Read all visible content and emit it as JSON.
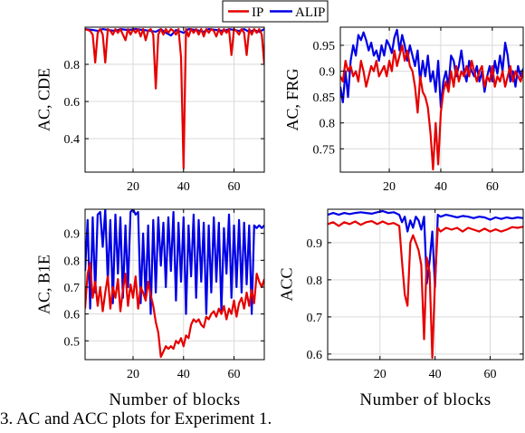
{
  "caption": "3.  AC and ACC plots for Experiment 1.",
  "colors": {
    "IP": "#e60000",
    "ALIP": "#0000e6",
    "grid": "#d9d9d9",
    "axis": "#000000"
  },
  "chart_data": [
    {
      "type": "line",
      "legend": {
        "placement": "top-center",
        "entries": [
          "IP",
          "ALIP"
        ]
      },
      "ylabel": "AC, CDE",
      "xlabel": "",
      "xlim": [
        1,
        72
      ],
      "ylim": [
        0.22,
        1.0
      ],
      "xticks": [
        20,
        40,
        60
      ],
      "yticks": [
        0.4,
        0.6,
        0.8
      ],
      "ytick_labels": [
        "0.4",
        "0.6",
        "0.8"
      ],
      "grid": true,
      "series": [
        {
          "name": "ALIP",
          "color": "#0000e6",
          "x": [
            1,
            4,
            6,
            8,
            10,
            13,
            15,
            18,
            21,
            24,
            27,
            29,
            31,
            33,
            35,
            37,
            39,
            40,
            42,
            45,
            48,
            50,
            53,
            56,
            58,
            60,
            62,
            64,
            66,
            68,
            70,
            72
          ],
          "y": [
            0.99,
            0.985,
            0.98,
            0.99,
            0.985,
            0.98,
            0.99,
            0.985,
            0.99,
            0.985,
            0.98,
            0.975,
            0.99,
            0.97,
            0.955,
            0.985,
            0.975,
            0.97,
            0.99,
            0.985,
            0.975,
            0.99,
            0.985,
            0.98,
            0.99,
            0.985,
            0.98,
            0.99,
            0.975,
            0.985,
            0.975,
            0.99
          ]
        },
        {
          "name": "IP",
          "color": "#e60000",
          "x": [
            1,
            3,
            4,
            5,
            6,
            7,
            8,
            9,
            10,
            11,
            12,
            13,
            14,
            15,
            16,
            17,
            18,
            19,
            20,
            21,
            22,
            23,
            24,
            25,
            26,
            27,
            28,
            29,
            30,
            31,
            32,
            33,
            34,
            35,
            36,
            37,
            38,
            39,
            40,
            41,
            42,
            43,
            44,
            45,
            46,
            47,
            48,
            49,
            50,
            51,
            52,
            53,
            54,
            55,
            56,
            57,
            58,
            59,
            60,
            61,
            62,
            63,
            64,
            65,
            66,
            67,
            68,
            69,
            70,
            71,
            72
          ],
          "y": [
            0.99,
            0.98,
            0.96,
            0.81,
            0.97,
            0.99,
            0.96,
            0.81,
            0.99,
            0.98,
            0.96,
            0.99,
            0.97,
            0.99,
            0.96,
            0.93,
            0.99,
            0.96,
            0.99,
            0.97,
            0.99,
            0.95,
            0.99,
            0.93,
            0.98,
            0.99,
            0.96,
            0.67,
            0.96,
            0.99,
            0.96,
            0.99,
            0.97,
            0.99,
            0.98,
            0.96,
            0.99,
            0.84,
            0.24,
            0.99,
            0.95,
            0.99,
            0.97,
            0.99,
            0.96,
            0.99,
            0.95,
            0.99,
            0.97,
            0.99,
            0.98,
            0.95,
            0.99,
            0.96,
            0.99,
            0.97,
            0.99,
            0.85,
            0.99,
            0.98,
            0.96,
            0.99,
            0.97,
            0.85,
            0.99,
            0.96,
            0.99,
            0.97,
            0.99,
            0.96,
            0.8
          ]
        }
      ]
    },
    {
      "type": "line",
      "ylabel": "AC, FRG",
      "xlabel": "",
      "xlim": [
        1,
        72
      ],
      "ylim": [
        0.705,
        0.985
      ],
      "xticks": [
        20,
        40,
        60
      ],
      "yticks": [
        0.75,
        0.8,
        0.85,
        0.9,
        0.95
      ],
      "ytick_labels": [
        "0.75",
        "0.8",
        "0.85",
        "0.9",
        "0.95"
      ],
      "grid": true,
      "series": [
        {
          "name": "ALIP",
          "color": "#0000e6",
          "x": [
            1,
            2,
            3,
            4,
            5,
            6,
            7,
            8,
            9,
            10,
            11,
            12,
            13,
            14,
            15,
            16,
            17,
            18,
            19,
            20,
            21,
            22,
            23,
            24,
            25,
            26,
            27,
            28,
            29,
            30,
            31,
            32,
            33,
            34,
            35,
            36,
            37,
            38,
            39,
            40,
            41,
            42,
            43,
            44,
            45,
            46,
            47,
            48,
            49,
            50,
            51,
            52,
            53,
            54,
            55,
            56,
            57,
            58,
            59,
            60,
            61,
            62,
            63,
            64,
            65,
            66,
            67,
            68,
            69,
            70,
            71,
            72
          ],
          "y": [
            0.87,
            0.84,
            0.9,
            0.85,
            0.92,
            0.95,
            0.93,
            0.97,
            0.96,
            0.975,
            0.96,
            0.94,
            0.955,
            0.93,
            0.94,
            0.92,
            0.95,
            0.93,
            0.96,
            0.95,
            0.935,
            0.965,
            0.98,
            0.94,
            0.97,
            0.95,
            0.92,
            0.95,
            0.93,
            0.91,
            0.94,
            0.88,
            0.92,
            0.89,
            0.93,
            0.88,
            0.9,
            0.86,
            0.92,
            0.83,
            0.88,
            0.9,
            0.87,
            0.93,
            0.92,
            0.89,
            0.91,
            0.94,
            0.9,
            0.88,
            0.92,
            0.9,
            0.89,
            0.91,
            0.88,
            0.9,
            0.86,
            0.89,
            0.91,
            0.88,
            0.92,
            0.895,
            0.93,
            0.9,
            0.955,
            0.93,
            0.88,
            0.9,
            0.87,
            0.91,
            0.89,
            0.905
          ]
        },
        {
          "name": "IP",
          "color": "#e60000",
          "x": [
            1,
            2,
            3,
            4,
            5,
            6,
            7,
            8,
            9,
            10,
            11,
            12,
            13,
            14,
            15,
            16,
            17,
            18,
            19,
            20,
            21,
            22,
            23,
            24,
            25,
            26,
            27,
            28,
            29,
            30,
            31,
            32,
            33,
            34,
            35,
            36,
            37,
            38,
            39,
            40,
            41,
            42,
            43,
            44,
            45,
            46,
            47,
            48,
            49,
            50,
            51,
            52,
            53,
            54,
            55,
            56,
            57,
            58,
            59,
            60,
            61,
            62,
            63,
            64,
            65,
            66,
            67,
            68,
            69,
            70,
            71,
            72
          ],
          "y": [
            0.89,
            0.88,
            0.92,
            0.9,
            0.91,
            0.89,
            0.9,
            0.88,
            0.92,
            0.9,
            0.87,
            0.89,
            0.91,
            0.9,
            0.92,
            0.89,
            0.9,
            0.91,
            0.89,
            0.92,
            0.9,
            0.94,
            0.91,
            0.93,
            0.95,
            0.92,
            0.94,
            0.91,
            0.9,
            0.87,
            0.82,
            0.89,
            0.86,
            0.85,
            0.83,
            0.78,
            0.71,
            0.8,
            0.72,
            0.82,
            0.86,
            0.88,
            0.86,
            0.9,
            0.87,
            0.91,
            0.88,
            0.9,
            0.89,
            0.91,
            0.89,
            0.92,
            0.9,
            0.88,
            0.9,
            0.91,
            0.87,
            0.89,
            0.88,
            0.91,
            0.87,
            0.89,
            0.88,
            0.9,
            0.87,
            0.89,
            0.91,
            0.88,
            0.9,
            0.89,
            0.88,
            0.9
          ]
        }
      ]
    },
    {
      "type": "line",
      "ylabel": "AC, B1E",
      "xlabel": "Number of blocks",
      "xlim": [
        1,
        72
      ],
      "ylim": [
        0.43,
        0.99
      ],
      "xticks": [
        20,
        40,
        60
      ],
      "yticks": [
        0.5,
        0.6,
        0.7,
        0.8,
        0.9
      ],
      "ytick_labels": [
        "0.5",
        "0.6",
        "0.7",
        "0.8",
        "0.9"
      ],
      "grid": true,
      "series": [
        {
          "name": "ALIP",
          "color": "#0000e6",
          "x": [
            1,
            2,
            3,
            4,
            5,
            6,
            7,
            8,
            9,
            10,
            11,
            12,
            13,
            14,
            15,
            16,
            17,
            18,
            19,
            20,
            21,
            22,
            23,
            24,
            25,
            26,
            27,
            28,
            29,
            30,
            31,
            32,
            33,
            34,
            35,
            36,
            37,
            38,
            39,
            40,
            41,
            42,
            43,
            44,
            45,
            46,
            47,
            48,
            49,
            50,
            51,
            52,
            53,
            54,
            55,
            56,
            57,
            58,
            59,
            60,
            61,
            62,
            63,
            64,
            65,
            66,
            67,
            68,
            69,
            70,
            71,
            72
          ],
          "y": [
            0.76,
            0.95,
            0.62,
            0.96,
            0.68,
            0.97,
            0.98,
            0.85,
            0.99,
            0.72,
            0.95,
            0.64,
            0.97,
            0.75,
            0.96,
            0.66,
            0.93,
            0.7,
            0.98,
            0.99,
            0.97,
            0.98,
            0.64,
            0.9,
            0.66,
            0.93,
            0.6,
            0.95,
            0.68,
            0.96,
            0.78,
            0.94,
            0.7,
            0.96,
            0.76,
            0.98,
            0.65,
            0.94,
            0.72,
            0.96,
            0.6,
            0.93,
            0.74,
            0.97,
            0.66,
            0.95,
            0.72,
            0.94,
            0.6,
            0.93,
            0.68,
            0.96,
            0.72,
            0.94,
            0.61,
            0.92,
            0.75,
            0.97,
            0.66,
            0.93,
            0.7,
            0.95,
            0.68,
            0.94,
            0.71,
            0.93,
            0.6,
            0.93,
            0.92,
            0.93,
            0.92,
            0.93
          ]
        },
        {
          "name": "IP",
          "color": "#e60000",
          "x": [
            1,
            2,
            3,
            4,
            5,
            6,
            7,
            8,
            9,
            10,
            11,
            12,
            13,
            14,
            15,
            16,
            17,
            18,
            19,
            20,
            21,
            22,
            23,
            24,
            25,
            26,
            27,
            28,
            29,
            30,
            31,
            32,
            33,
            34,
            35,
            36,
            37,
            38,
            39,
            40,
            41,
            42,
            43,
            44,
            45,
            46,
            47,
            48,
            49,
            50,
            51,
            52,
            53,
            54,
            55,
            56,
            57,
            58,
            59,
            60,
            61,
            62,
            63,
            64,
            65,
            66,
            67,
            68,
            69,
            70,
            71,
            72
          ],
          "y": [
            0.62,
            0.75,
            0.79,
            0.66,
            0.72,
            0.63,
            0.7,
            0.61,
            0.68,
            0.74,
            0.62,
            0.7,
            0.66,
            0.73,
            0.61,
            0.69,
            0.75,
            0.63,
            0.71,
            0.66,
            0.74,
            0.62,
            0.7,
            0.68,
            0.65,
            0.72,
            0.67,
            0.63,
            0.57,
            0.53,
            0.44,
            0.46,
            0.48,
            0.47,
            0.48,
            0.47,
            0.5,
            0.49,
            0.51,
            0.48,
            0.52,
            0.51,
            0.56,
            0.58,
            0.57,
            0.58,
            0.56,
            0.55,
            0.59,
            0.58,
            0.6,
            0.61,
            0.59,
            0.62,
            0.6,
            0.63,
            0.58,
            0.62,
            0.6,
            0.65,
            0.59,
            0.64,
            0.66,
            0.62,
            0.68,
            0.63,
            0.69,
            0.64,
            0.75,
            0.72,
            0.7,
            0.73
          ]
        }
      ]
    },
    {
      "type": "line",
      "ylabel": "ACC",
      "xlabel": "Number of blocks",
      "xlim": [
        1,
        72
      ],
      "ylim": [
        0.585,
        0.99
      ],
      "xticks": [
        20,
        40,
        60
      ],
      "yticks": [
        0.6,
        0.7,
        0.8,
        0.9
      ],
      "ytick_labels": [
        "0.6",
        "0.7",
        "0.8",
        "0.9"
      ],
      "grid": true,
      "series": [
        {
          "name": "ALIP",
          "color": "#0000e6",
          "x": [
            1,
            3,
            5,
            7,
            9,
            11,
            13,
            15,
            17,
            19,
            21,
            23,
            25,
            27,
            28,
            29,
            30,
            31,
            32,
            33,
            34,
            35,
            36,
            37,
            38,
            39,
            40,
            41,
            42,
            44,
            46,
            48,
            50,
            52,
            54,
            56,
            58,
            60,
            62,
            64,
            66,
            68,
            70,
            72
          ],
          "y": [
            0.975,
            0.98,
            0.975,
            0.98,
            0.977,
            0.98,
            0.982,
            0.98,
            0.978,
            0.982,
            0.985,
            0.98,
            0.982,
            0.975,
            0.955,
            0.97,
            0.93,
            0.96,
            0.94,
            0.97,
            0.96,
            0.935,
            0.97,
            0.79,
            0.85,
            0.93,
            0.78,
            0.975,
            0.97,
            0.975,
            0.972,
            0.968,
            0.972,
            0.97,
            0.966,
            0.97,
            0.968,
            0.962,
            0.968,
            0.964,
            0.968,
            0.965,
            0.968,
            0.966
          ]
        },
        {
          "name": "IP",
          "color": "#e60000",
          "x": [
            1,
            3,
            5,
            7,
            9,
            11,
            13,
            15,
            17,
            19,
            21,
            23,
            25,
            27,
            28,
            29,
            30,
            31,
            32,
            33,
            34,
            35,
            36,
            37,
            38,
            39,
            40,
            41,
            42,
            44,
            46,
            48,
            50,
            52,
            54,
            56,
            58,
            60,
            62,
            64,
            66,
            68,
            70,
            72
          ],
          "y": [
            0.95,
            0.955,
            0.945,
            0.955,
            0.95,
            0.957,
            0.948,
            0.955,
            0.958,
            0.95,
            0.957,
            0.95,
            0.953,
            0.945,
            0.85,
            0.76,
            0.73,
            0.9,
            0.92,
            0.9,
            0.88,
            0.84,
            0.64,
            0.86,
            0.82,
            0.59,
            0.8,
            0.94,
            0.93,
            0.94,
            0.935,
            0.94,
            0.93,
            0.94,
            0.935,
            0.93,
            0.938,
            0.93,
            0.936,
            0.93,
            0.935,
            0.942,
            0.94,
            0.943
          ]
        }
      ]
    }
  ]
}
